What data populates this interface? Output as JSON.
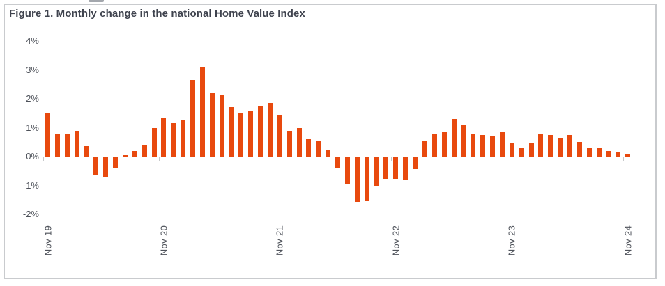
{
  "figure": {
    "title": "Figure 1. Monthly change in the national Home Value Index"
  },
  "chart_data": {
    "type": "bar",
    "title": "Figure 1. Monthly change in the national Home Value Index",
    "xlabel": "",
    "ylabel": "",
    "unit": "%",
    "grid": false,
    "legend": "none",
    "ylim": [
      -2,
      4
    ],
    "yticks": [
      4,
      3,
      2,
      1,
      0,
      -1,
      -2
    ],
    "ytick_labels": [
      "4%",
      "3%",
      "2%",
      "1%",
      "0%",
      "-1%",
      "-2%"
    ],
    "xtick_labels": [
      "Nov 19",
      "Nov 20",
      "Nov 21",
      "Nov 22",
      "Nov 23",
      "Nov 24"
    ],
    "xtick_every": 12,
    "bar_color": "#e8490e",
    "x": [
      "Nov 19",
      "Dec 19",
      "Jan 20",
      "Feb 20",
      "Mar 20",
      "Apr 20",
      "May 20",
      "Jun 20",
      "Jul 20",
      "Aug 20",
      "Sep 20",
      "Oct 20",
      "Nov 20",
      "Dec 20",
      "Jan 21",
      "Feb 21",
      "Mar 21",
      "Apr 21",
      "May 21",
      "Jun 21",
      "Jul 21",
      "Aug 21",
      "Sep 21",
      "Oct 21",
      "Nov 21",
      "Dec 21",
      "Jan 22",
      "Feb 22",
      "Mar 22",
      "Apr 22",
      "May 22",
      "Jun 22",
      "Jul 22",
      "Aug 22",
      "Sep 22",
      "Oct 22",
      "Nov 22",
      "Dec 22",
      "Jan 23",
      "Feb 23",
      "Mar 23",
      "Apr 23",
      "May 23",
      "Jun 23",
      "Jul 23",
      "Aug 23",
      "Sep 23",
      "Oct 23",
      "Nov 23",
      "Dec 23",
      "Jan 24",
      "Feb 24",
      "Mar 24",
      "Apr 24",
      "May 24",
      "Jun 24",
      "Jul 24",
      "Aug 24",
      "Sep 24",
      "Oct 24",
      "Nov 24"
    ],
    "values": [
      1.5,
      0.8,
      0.8,
      0.9,
      0.35,
      -0.6,
      -0.7,
      -0.35,
      0.05,
      0.2,
      0.4,
      1.0,
      1.35,
      1.15,
      1.25,
      2.65,
      3.1,
      2.2,
      2.15,
      1.7,
      1.5,
      1.6,
      1.75,
      1.85,
      1.45,
      0.9,
      1.0,
      0.6,
      0.55,
      0.25,
      -0.35,
      -0.9,
      -1.55,
      -1.5,
      -1.0,
      -0.75,
      -0.75,
      -0.8,
      -0.4,
      0.55,
      0.8,
      0.85,
      1.3,
      1.1,
      0.8,
      0.75,
      0.7,
      0.85,
      0.45,
      0.3,
      0.45,
      0.8,
      0.75,
      0.65,
      0.75,
      0.5,
      0.3,
      0.3,
      0.2,
      0.15,
      0.1
    ]
  },
  "colors": {
    "bar": "#e8490e",
    "title_text": "#3f434e",
    "axis_text": "#4e525a",
    "axis_line": "#dadbdd",
    "tick_line": "#c6c8ca",
    "frame_border": "#c9cbce",
    "background": "#ffffff"
  }
}
